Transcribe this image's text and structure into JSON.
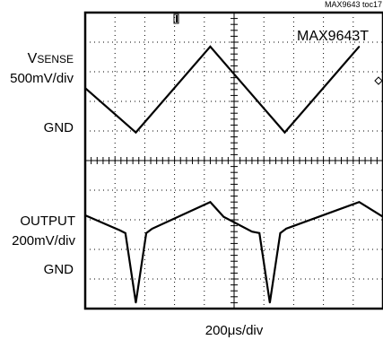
{
  "chart_data": [
    {
      "type": "line",
      "title": "",
      "grid": true,
      "label_main": "V",
      "label_sub": "SENSE",
      "label_scale": "500mV/div",
      "label_ground": "GND",
      "x_unit_per_div": "200μs/div",
      "x": [
        0,
        1.7,
        4.2,
        6.7,
        9.2
      ],
      "y": [
        2.45,
        0.95,
        3.85,
        0.95,
        3.85
      ]
    },
    {
      "type": "line",
      "title": "",
      "grid": true,
      "label_main": "OUTPUT",
      "label_scale": "200mV/div",
      "label_ground": "GND",
      "x": [
        0,
        1.15,
        1.35,
        1.7,
        2.05,
        2.25,
        4.2,
        4.65,
        5.6,
        5.85,
        6.2,
        6.55,
        6.75,
        9.2,
        10
      ],
      "y": [
        3.15,
        2.65,
        2.55,
        0.2,
        2.55,
        2.7,
        3.6,
        3.1,
        2.6,
        2.55,
        0.2,
        2.55,
        2.7,
        3.6,
        3.1
      ]
    }
  ],
  "header": {
    "figure_id": "MAX9643 toc17",
    "part_number": "MAX9643T"
  },
  "x_axis": {
    "label": "200μs/div"
  },
  "colors": {
    "trace": "#000000",
    "grid": "#000000",
    "background": "#ffffff"
  }
}
